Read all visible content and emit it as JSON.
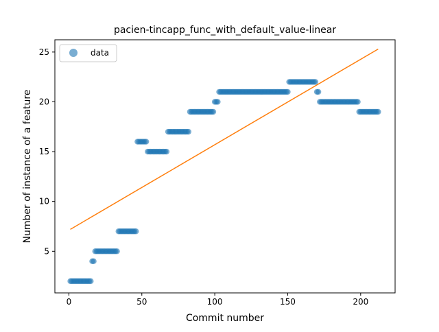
{
  "chart_data": {
    "type": "scatter",
    "title": "pacien-tincapp_func_with_default_value-linear",
    "xlabel": "Commit number",
    "ylabel": "Number of instance of a feature",
    "xlim": [
      -9.6,
      223.6
    ],
    "ylim": [
      0.82,
      26.23
    ],
    "xticks": [
      0,
      50,
      100,
      150,
      200
    ],
    "yticks": [
      5,
      10,
      15,
      20,
      25
    ],
    "legend": {
      "position": "top-left",
      "label": "data"
    },
    "colors": {
      "data": "#1f77b4",
      "fit": "#ff7f0e"
    },
    "segments": [
      {
        "from": 1,
        "to": 15,
        "y": 2
      },
      {
        "from": 16,
        "to": 17,
        "y": 4
      },
      {
        "from": 18,
        "to": 33,
        "y": 5
      },
      {
        "from": 34,
        "to": 46,
        "y": 7
      },
      {
        "from": 47,
        "to": 53,
        "y": 16
      },
      {
        "from": 54,
        "to": 67,
        "y": 15
      },
      {
        "from": 68,
        "to": 82,
        "y": 17
      },
      {
        "from": 83,
        "to": 99,
        "y": 19
      },
      {
        "from": 100,
        "to": 102,
        "y": 20
      },
      {
        "from": 103,
        "to": 150,
        "y": 21
      },
      {
        "from": 151,
        "to": 169,
        "y": 22
      },
      {
        "from": 170,
        "to": 171,
        "y": 21
      },
      {
        "from": 172,
        "to": 198,
        "y": 20
      },
      {
        "from": 199,
        "to": 212,
        "y": 19
      }
    ],
    "fit_line": {
      "x": [
        1,
        212
      ],
      "y": [
        7.2,
        25.3
      ]
    }
  }
}
